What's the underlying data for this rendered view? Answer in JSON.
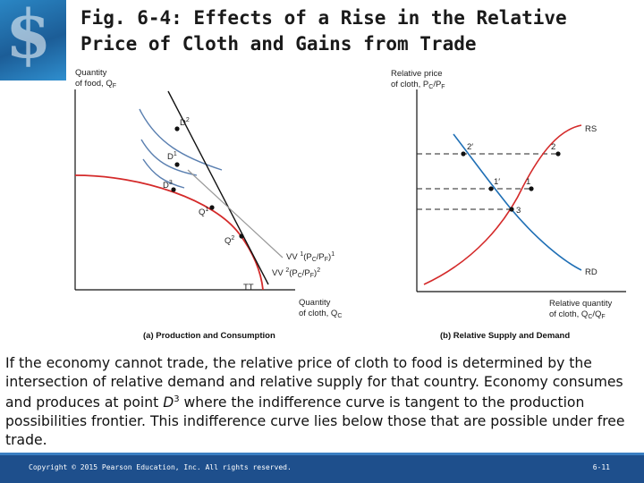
{
  "slide": {
    "title_line1": "Fig. 6-4: Effects of a Rise in the Relative",
    "title_line2": "Price of Cloth and Gains from Trade",
    "caption_part1": "If the economy cannot trade, the relative price of cloth to food is determined by the intersection of relative demand and relative supply for that country. Economy consumes and produces at point ",
    "caption_symbol": "D",
    "caption_superscript": "3",
    "caption_part2": " where the indifference curve is tangent to the production possibilities frontier. This indifference curve lies below those that are possible under free trade.",
    "footer": {
      "copyright": "Copyright © 2015 Pearson Education, Inc. All rights reserved.",
      "page_number": "6-11"
    },
    "colors": {
      "footer_bg": "#1e4f8c",
      "curve_red": "#d42a2a",
      "curve_blue": "#1f6fb5",
      "line_black": "#111111"
    }
  },
  "panel_a": {
    "y_axis_label_line1": "Quantity",
    "y_axis_label_line2": "of food, Q",
    "y_axis_label_sub": "F",
    "x_axis_label_line1": "Quantity",
    "x_axis_label_line2": "of cloth, Q",
    "x_axis_label_sub": "C",
    "caption": "(a) Production and Consumption",
    "points": {
      "d2": "D",
      "d2_sup": "2",
      "d1": "D",
      "d1_sup": "1",
      "d3": "D",
      "d3_sup": "3",
      "q1": "Q",
      "q1_sup": "1",
      "q2": "Q",
      "q2_sup": "2"
    },
    "line_vv1": "VV ",
    "line_vv1_sup": "1",
    "line_vv1_rest": "(P",
    "line_vv1_c": "C",
    "line_vv1_mid": "/P",
    "line_vv1_f": "F",
    "line_vv1_end": ")",
    "line_vv1_sup2": "1",
    "line_vv2": "VV ",
    "line_vv2_sup": "2",
    "line_vv2_rest": "(P",
    "line_vv2_c": "C",
    "line_vv2_mid": "/P",
    "line_vv2_f": "F",
    "line_vv2_end": ")",
    "line_vv2_sup2": "2",
    "curve_tt": "TT"
  },
  "panel_b": {
    "y_axis_label_line1": "Relative price",
    "y_axis_label_line2": "of cloth, P",
    "y_axis_label_c": "C",
    "y_axis_label_slash": "/P",
    "y_axis_label_f": "F",
    "x_axis_label_line1": "Relative quantity",
    "x_axis_label_line2": "of cloth, Q",
    "x_axis_label_c": "C",
    "x_axis_label_slash": "/Q",
    "x_axis_label_f": "F",
    "caption": "(b) Relative Supply and Demand",
    "curve_rs": "RS",
    "curve_rd": "RD",
    "points": {
      "p2prime": "2′",
      "p2": "2",
      "p1prime": "1′",
      "p1": "1",
      "p3": "3"
    }
  }
}
